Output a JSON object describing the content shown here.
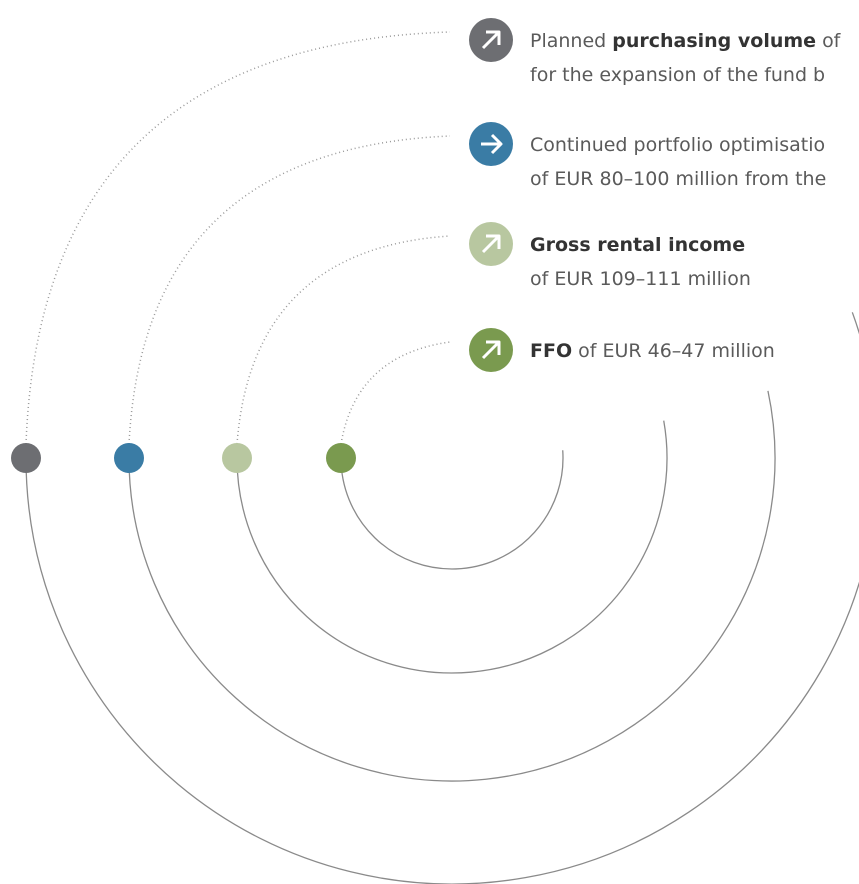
{
  "items": [
    {
      "lines": [
        [
          "Planned",
          "purchasing volume",
          "of"
        ],
        [
          "for the expansion of the fund b"
        ]
      ]
    },
    {
      "lines": [
        [
          "Continued portfolio optimisatio"
        ],
        [
          "of EUR 80–100 million from the"
        ]
      ]
    },
    {
      "lines": [
        [
          "Gross rental income"
        ],
        [
          "of EUR 109–111 million"
        ]
      ]
    },
    {
      "lines": [
        [
          "FFO",
          "of EUR 46–47 million"
        ]
      ]
    }
  ]
}
